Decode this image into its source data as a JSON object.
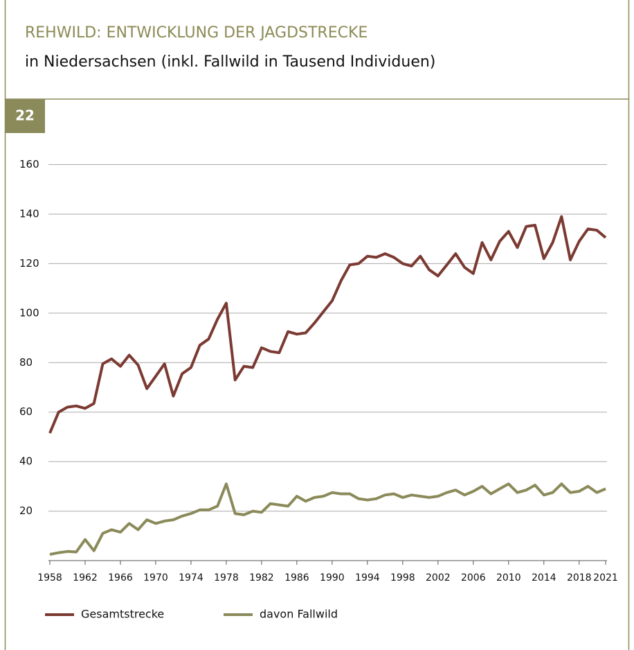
{
  "badge": "22",
  "chart_data": {
    "type": "line",
    "title": "REHWILD: ENTWICKLUNG DER JAGDSTRECKE",
    "subtitle": "in Niedersachsen (inkl. Fallwild in Tausend Individuen)",
    "x": [
      1958,
      1959,
      1960,
      1961,
      1962,
      1963,
      1964,
      1965,
      1966,
      1967,
      1968,
      1969,
      1970,
      1971,
      1972,
      1973,
      1974,
      1975,
      1976,
      1977,
      1978,
      1979,
      1980,
      1981,
      1982,
      1983,
      1984,
      1985,
      1986,
      1987,
      1988,
      1989,
      1990,
      1991,
      1992,
      1993,
      1994,
      1995,
      1996,
      1997,
      1998,
      1999,
      2000,
      2001,
      2002,
      2003,
      2004,
      2005,
      2006,
      2007,
      2008,
      2009,
      2010,
      2011,
      2012,
      2013,
      2014,
      2015,
      2016,
      2017,
      2018,
      2019,
      2020,
      2021
    ],
    "series": [
      {
        "name": "Gesamtstrecke",
        "color": "#7b3a32",
        "values": [
          51.5,
          60,
          62,
          62.5,
          61.5,
          63.5,
          79.5,
          81.5,
          78.5,
          83,
          79,
          69.5,
          74.5,
          79.5,
          66.5,
          75.5,
          78,
          87,
          89.5,
          97.5,
          104,
          73,
          78.5,
          78,
          86,
          84.5,
          84,
          92.5,
          91.5,
          92,
          96,
          100.5,
          105,
          113,
          119.5,
          120,
          123,
          122.5,
          124,
          122.5,
          120,
          119,
          123,
          117.5,
          115,
          119.5,
          124,
          118.5,
          116,
          128.5,
          121.5,
          129,
          133,
          126.5,
          135,
          135.5,
          122,
          128.5,
          139,
          121.5,
          129,
          134,
          133.5,
          130.5
        ]
      },
      {
        "name": "davon Fallwild",
        "color": "#8b8a5a",
        "values": [
          2.5,
          3.2,
          3.7,
          3.5,
          8.5,
          4,
          11,
          12.5,
          11.5,
          15,
          12.5,
          16.5,
          15,
          16,
          16.5,
          18,
          19,
          20.5,
          20.5,
          22,
          31,
          19,
          18.5,
          20,
          19.5,
          23,
          22.5,
          22,
          26,
          24,
          25.5,
          26,
          27.5,
          27,
          27,
          25,
          24.5,
          25,
          26.5,
          27,
          25.5,
          26.5,
          26,
          25.5,
          26,
          27.5,
          28.5,
          26.5,
          28,
          30,
          27,
          29,
          31,
          27.5,
          28.5,
          30.5,
          26.5,
          27.5,
          31,
          27.5,
          28,
          30,
          27.5,
          29
        ]
      }
    ],
    "xlim": [
      1958,
      2021
    ],
    "xticks": [
      1958,
      1962,
      1966,
      1970,
      1974,
      1978,
      1982,
      1986,
      1990,
      1994,
      1998,
      2002,
      2006,
      2010,
      2014,
      2018,
      2021
    ],
    "ylim": [
      0,
      160
    ],
    "yticks": [
      20,
      40,
      60,
      80,
      100,
      120,
      140,
      160
    ],
    "grid": true
  }
}
